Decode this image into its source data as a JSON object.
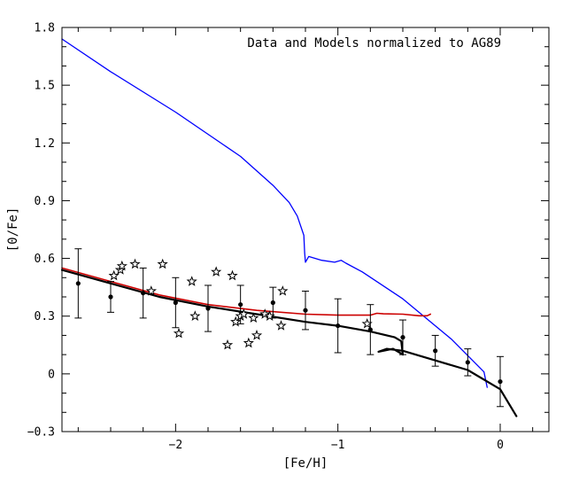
{
  "chart_data": {
    "type": "scatter",
    "annotation": "Data and Models normalized to AG89",
    "xlabel": "[Fe/H]",
    "ylabel": "[0/Fe]",
    "xlim": [
      -2.7,
      0.3
    ],
    "ylim": [
      -0.3,
      1.8
    ],
    "x_ticks": [
      -2,
      -1,
      0
    ],
    "x_tick_labels": [
      "−2",
      "−1",
      "0"
    ],
    "y_ticks": [
      -0.3,
      0,
      0.3,
      0.6,
      0.9,
      1.2,
      1.5,
      1.8
    ],
    "y_tick_labels": [
      "−0.3",
      "0",
      "0.3",
      "0.6",
      "0.9",
      "1.2",
      "1.5",
      "1.8"
    ],
    "grid": false,
    "series": [
      {
        "kind": "points_with_errorbars",
        "color": "#000000",
        "points": [
          {
            "x": -2.6,
            "y": 0.47,
            "err": 0.18
          },
          {
            "x": -2.4,
            "y": 0.4,
            "err": 0.08
          },
          {
            "x": -2.2,
            "y": 0.42,
            "err": 0.13
          },
          {
            "x": -2.0,
            "y": 0.37,
            "err": 0.13
          },
          {
            "x": -1.8,
            "y": 0.34,
            "err": 0.12
          },
          {
            "x": -1.6,
            "y": 0.36,
            "err": 0.1
          },
          {
            "x": -1.4,
            "y": 0.37,
            "err": 0.08
          },
          {
            "x": -1.2,
            "y": 0.33,
            "err": 0.1
          },
          {
            "x": -1.0,
            "y": 0.25,
            "err": 0.14
          },
          {
            "x": -0.8,
            "y": 0.23,
            "err": 0.13
          },
          {
            "x": -0.6,
            "y": 0.19,
            "err": 0.09
          },
          {
            "x": -0.4,
            "y": 0.12,
            "err": 0.08
          },
          {
            "x": -0.2,
            "y": 0.06,
            "err": 0.07
          },
          {
            "x": 0.0,
            "y": -0.04,
            "err": 0.13
          }
        ]
      },
      {
        "kind": "stars",
        "color": "#000000",
        "points": [
          {
            "x": -2.38,
            "y": 0.51
          },
          {
            "x": -2.34,
            "y": 0.54
          },
          {
            "x": -2.33,
            "y": 0.56
          },
          {
            "x": -2.25,
            "y": 0.57
          },
          {
            "x": -2.15,
            "y": 0.43
          },
          {
            "x": -2.08,
            "y": 0.57
          },
          {
            "x": -1.98,
            "y": 0.21
          },
          {
            "x": -1.9,
            "y": 0.48
          },
          {
            "x": -1.88,
            "y": 0.3
          },
          {
            "x": -1.75,
            "y": 0.53
          },
          {
            "x": -1.68,
            "y": 0.15
          },
          {
            "x": -1.65,
            "y": 0.51
          },
          {
            "x": -1.63,
            "y": 0.27
          },
          {
            "x": -1.6,
            "y": 0.3
          },
          {
            "x": -1.58,
            "y": 0.31
          },
          {
            "x": -1.55,
            "y": 0.16
          },
          {
            "x": -1.52,
            "y": 0.29
          },
          {
            "x": -1.5,
            "y": 0.2
          },
          {
            "x": -1.45,
            "y": 0.31
          },
          {
            "x": -1.42,
            "y": 0.3
          },
          {
            "x": -1.35,
            "y": 0.25
          },
          {
            "x": -1.34,
            "y": 0.43
          },
          {
            "x": -0.82,
            "y": 0.26
          }
        ]
      },
      {
        "kind": "line",
        "color": "#0000ff",
        "width": 1.3,
        "points": [
          [
            -2.7,
            1.74
          ],
          [
            -2.4,
            1.57
          ],
          [
            -2.0,
            1.36
          ],
          [
            -1.6,
            1.13
          ],
          [
            -1.4,
            0.98
          ],
          [
            -1.3,
            0.89
          ],
          [
            -1.25,
            0.82
          ],
          [
            -1.21,
            0.72
          ],
          [
            -1.205,
            0.63
          ],
          [
            -1.2,
            0.58
          ],
          [
            -1.18,
            0.61
          ],
          [
            -1.1,
            0.59
          ],
          [
            -1.02,
            0.58
          ],
          [
            -0.98,
            0.59
          ],
          [
            -0.95,
            0.575
          ],
          [
            -0.85,
            0.53
          ],
          [
            -0.6,
            0.39
          ],
          [
            -0.3,
            0.18
          ],
          [
            -0.1,
            0.01
          ],
          [
            -0.08,
            -0.07
          ]
        ]
      },
      {
        "kind": "line",
        "color": "#cc0000",
        "width": 1.6,
        "points": [
          [
            -2.7,
            0.55
          ],
          [
            -2.4,
            0.48
          ],
          [
            -2.1,
            0.41
          ],
          [
            -1.8,
            0.36
          ],
          [
            -1.5,
            0.33
          ],
          [
            -1.2,
            0.31
          ],
          [
            -1.0,
            0.305
          ],
          [
            -0.8,
            0.305
          ],
          [
            -0.76,
            0.315
          ],
          [
            -0.72,
            0.312
          ],
          [
            -0.6,
            0.31
          ],
          [
            -0.5,
            0.302
          ],
          [
            -0.45,
            0.302
          ],
          [
            -0.43,
            0.31
          ]
        ]
      },
      {
        "kind": "line",
        "color": "#000000",
        "width": 2.2,
        "points": [
          [
            -2.7,
            0.54
          ],
          [
            -2.4,
            0.47
          ],
          [
            -2.1,
            0.4
          ],
          [
            -1.8,
            0.35
          ],
          [
            -1.5,
            0.31
          ],
          [
            -1.2,
            0.27
          ],
          [
            -1.0,
            0.25
          ],
          [
            -0.8,
            0.22
          ],
          [
            -0.65,
            0.19
          ],
          [
            -0.61,
            0.17
          ],
          [
            -0.6,
            0.1
          ],
          [
            -0.66,
            0.13
          ],
          [
            -0.75,
            0.115
          ],
          [
            -0.7,
            0.13
          ],
          [
            -0.6,
            0.12
          ],
          [
            -0.4,
            0.07
          ],
          [
            -0.2,
            0.02
          ],
          [
            0.0,
            -0.08
          ],
          [
            0.1,
            -0.22
          ]
        ]
      }
    ]
  }
}
